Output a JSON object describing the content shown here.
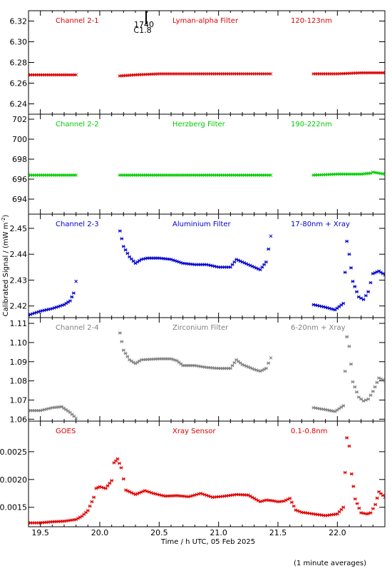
{
  "chart_data": {
    "type": "scatter",
    "xlabel": "Time / h UTC, 05 Feb 2025",
    "ylabel": "Calibrated Signal / (mW m",
    "ylabel_sup": "-2",
    "ylabel_end": ")",
    "footnote": "(1 minute averages)",
    "xlim": [
      19.4,
      22.4
    ],
    "xticks": [
      "19.5",
      "20.0",
      "20.5",
      "21.0",
      "21.5",
      "22.0"
    ],
    "flare_marker": {
      "time_text": "1740",
      "class_text": "C1.8",
      "x": 20.39
    },
    "panels": [
      {
        "labels": [
          "Channel 2-1",
          "Lyman-alpha Filter",
          "120-123nm"
        ],
        "color": "#dd0000",
        "ylim": [
          6.23,
          6.33
        ],
        "yticks": [
          "6.24",
          "6.26",
          "6.28",
          "6.30",
          "6.32"
        ],
        "series": [
          {
            "x": [
              19.4,
              19.6,
              19.8
            ],
            "y": [
              6.268,
              6.268,
              6.268
            ]
          },
          {
            "x": [
              20.17,
              20.3,
              20.5,
              20.8,
              21.0,
              21.2,
              21.44
            ],
            "y": [
              6.267,
              6.268,
              6.269,
              6.269,
              6.269,
              6.269,
              6.269
            ]
          },
          {
            "x": [
              21.8,
              22.0,
              22.2,
              22.4
            ],
            "y": [
              6.269,
              6.269,
              6.27,
              6.27
            ]
          }
        ]
      },
      {
        "labels": [
          "Channel 2-2",
          "Herzberg Filter",
          "190-222nm"
        ],
        "color": "#00cc00",
        "ylim": [
          692.5,
          702.5
        ],
        "yticks": [
          "694",
          "696",
          "698",
          "700",
          "702"
        ],
        "series": [
          {
            "x": [
              19.4,
              19.6,
              19.8
            ],
            "y": [
              696.4,
              696.4,
              696.4
            ]
          },
          {
            "x": [
              20.17,
              20.5,
              21.0,
              21.44
            ],
            "y": [
              696.4,
              696.4,
              696.4,
              696.4
            ]
          },
          {
            "x": [
              21.8,
              22.0,
              22.2,
              22.28,
              22.3,
              22.4
            ],
            "y": [
              696.4,
              696.5,
              696.5,
              696.6,
              696.7,
              696.5
            ]
          }
        ]
      },
      {
        "labels": [
          "Channel 2-3",
          "Aluminium Filter",
          "17-80nm + Xray"
        ],
        "color": "#0000cc",
        "ylim": [
          2.4155,
          2.4555
        ],
        "yticks": [
          "2.42",
          "2.43",
          "2.44",
          "2.45"
        ],
        "series": [
          {
            "x": [
              19.4,
              19.5,
              19.6,
              19.7,
              19.75,
              19.78,
              19.8
            ],
            "y": [
              2.4165,
              2.418,
              2.419,
              2.4205,
              2.422,
              2.425,
              2.4295
            ]
          },
          {
            "x": [
              20.17,
              20.2,
              20.25,
              20.3,
              20.35,
              20.4,
              20.5,
              20.6,
              20.7,
              20.8,
              20.9,
              21.0,
              21.1,
              21.15,
              21.2,
              21.3,
              21.35,
              21.4,
              21.44
            ],
            "y": [
              2.449,
              2.443,
              2.439,
              2.4365,
              2.438,
              2.4385,
              2.4385,
              2.438,
              2.4365,
              2.436,
              2.436,
              2.435,
              2.435,
              2.438,
              2.437,
              2.435,
              2.434,
              2.437,
              2.447
            ]
          },
          {
            "x": [
              21.8,
              21.9,
              21.98,
              22.05,
              22.08,
              22.1,
              22.13,
              22.18,
              22.22,
              22.26,
              22.3,
              22.35,
              22.4
            ],
            "y": [
              2.4205,
              2.4195,
              2.4185,
              2.421,
              2.445,
              2.44,
              2.4295,
              2.4235,
              2.4225,
              2.4255,
              2.4325,
              2.4335,
              2.432
            ]
          }
        ]
      },
      {
        "labels": [
          "Channel 2-4",
          "Zirconium Filter",
          "6-20nm + Xray"
        ],
        "color": "#808080",
        "ylim": [
          1.059,
          1.113
        ],
        "yticks": [
          "1.06",
          "1.07",
          "1.08",
          "1.09",
          "1.10",
          "1.11"
        ],
        "series": [
          {
            "x": [
              19.4,
              19.5,
              19.6,
              19.68,
              19.75,
              19.8
            ],
            "y": [
              1.0645,
              1.0645,
              1.066,
              1.0665,
              1.0635,
              1.0605
            ]
          },
          {
            "x": [
              20.17,
              20.2,
              20.25,
              20.3,
              20.35,
              20.5,
              20.6,
              20.65,
              20.7,
              20.8,
              20.9,
              21.0,
              21.1,
              21.15,
              21.2,
              21.3,
              21.35,
              21.4,
              21.44
            ],
            "y": [
              1.105,
              1.096,
              1.091,
              1.089,
              1.091,
              1.0915,
              1.0915,
              1.0905,
              1.088,
              1.088,
              1.087,
              1.0865,
              1.0865,
              1.091,
              1.0885,
              1.086,
              1.085,
              1.0865,
              1.092
            ]
          },
          {
            "x": [
              21.8,
              21.9,
              21.98,
              22.05,
              22.08,
              22.1,
              22.13,
              22.18,
              22.22,
              22.26,
              22.3,
              22.35,
              22.4
            ],
            "y": [
              1.066,
              1.065,
              1.064,
              1.067,
              1.103,
              1.098,
              1.0795,
              1.0715,
              1.0695,
              1.0705,
              1.0745,
              1.0815,
              1.08
            ]
          }
        ]
      },
      {
        "labels": [
          "GOES",
          "Xray Sensor",
          "0.1-0.8nm"
        ],
        "color": "#dd0000",
        "ylim": [
          0.00115,
          0.00305
        ],
        "yticks": [
          "0.0015",
          "0.0020",
          "0.0025"
        ],
        "series": [
          {
            "x": [
              19.4,
              19.5,
              19.6,
              19.7,
              19.8,
              19.85,
              19.9,
              19.95,
              19.97,
              20.0,
              20.05,
              20.1,
              20.12,
              20.15,
              20.18,
              20.22,
              20.3,
              20.38,
              20.45,
              20.55,
              20.65,
              20.75,
              20.85,
              20.95,
              21.05,
              21.15,
              21.25,
              21.35,
              21.4,
              21.45,
              21.5,
              21.55,
              21.6,
              21.65,
              21.7,
              21.8,
              21.9,
              22.0,
              22.05,
              22.08,
              22.1,
              22.12,
              22.15,
              22.2,
              22.25,
              22.28,
              22.32,
              22.35,
              22.4
            ],
            "y": [
              0.00122,
              0.00122,
              0.00124,
              0.00125,
              0.00128,
              0.00134,
              0.00144,
              0.00168,
              0.00184,
              0.00187,
              0.00184,
              0.00198,
              0.0023,
              0.00237,
              0.00221,
              0.00181,
              0.00173,
              0.0018,
              0.00175,
              0.0017,
              0.00171,
              0.00169,
              0.00175,
              0.00168,
              0.0017,
              0.00173,
              0.00172,
              0.0016,
              0.00163,
              0.00162,
              0.0016,
              0.00161,
              0.00166,
              0.00145,
              0.00141,
              0.00138,
              0.00135,
              0.00138,
              0.0015,
              0.00275,
              0.0026,
              0.0021,
              0.00165,
              0.0014,
              0.00138,
              0.0014,
              0.00155,
              0.00178,
              0.00168
            ]
          }
        ]
      }
    ]
  }
}
